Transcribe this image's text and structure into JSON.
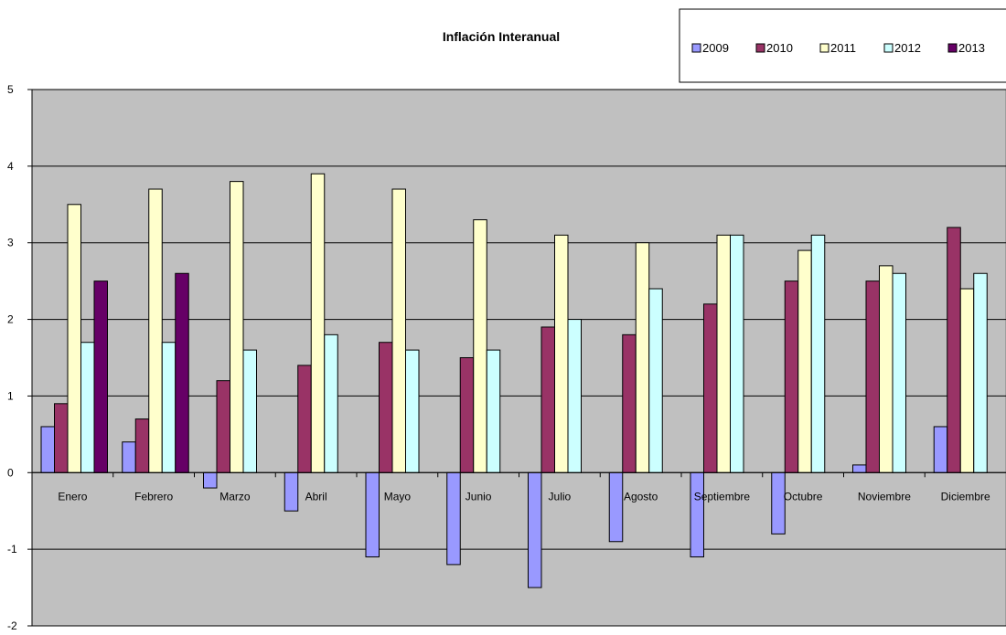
{
  "chart_data": {
    "type": "bar",
    "title": "Inflación Interanual",
    "xlabel": "",
    "ylabel": "",
    "ylim": [
      -2,
      5
    ],
    "yticks": [
      -2,
      -1,
      0,
      1,
      2,
      3,
      4,
      5
    ],
    "grid": true,
    "legend_position": "top-right",
    "plot_background": "#c0c0c0",
    "categories": [
      "Enero",
      "Febrero",
      "Marzo",
      "Abril",
      "Mayo",
      "Junio",
      "Julio",
      "Agosto",
      "Septiembre",
      "Octubre",
      "Noviembre",
      "Diciembre"
    ],
    "series": [
      {
        "name": "2009",
        "color": "#9999ff",
        "values": [
          0.6,
          0.4,
          -0.2,
          -0.5,
          -1.1,
          -1.2,
          -1.5,
          -0.9,
          -1.1,
          -0.8,
          0.1,
          0.6
        ]
      },
      {
        "name": "2010",
        "color": "#993366",
        "values": [
          0.9,
          0.7,
          1.2,
          1.4,
          1.7,
          1.5,
          1.9,
          1.8,
          2.2,
          2.5,
          2.5,
          3.2
        ]
      },
      {
        "name": "2011",
        "color": "#ffffcc",
        "values": [
          3.5,
          3.7,
          3.8,
          3.9,
          3.7,
          3.3,
          3.1,
          3.0,
          3.1,
          2.9,
          2.7,
          2.4
        ]
      },
      {
        "name": "2012",
        "color": "#ccffff",
        "values": [
          1.7,
          1.7,
          1.6,
          1.8,
          1.6,
          1.6,
          2.0,
          2.4,
          3.1,
          3.1,
          2.6,
          2.6
        ]
      },
      {
        "name": "2013",
        "color": "#660066",
        "values": [
          2.5,
          2.6,
          null,
          null,
          null,
          null,
          null,
          null,
          null,
          null,
          null,
          null
        ]
      }
    ]
  }
}
